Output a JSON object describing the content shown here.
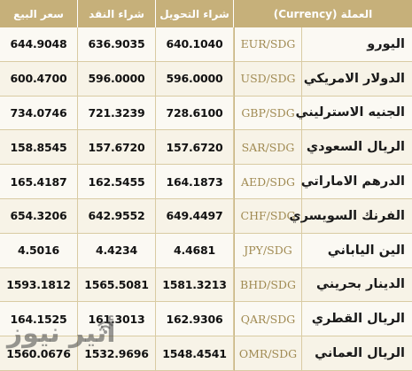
{
  "headers": {
    "sell": "سعر البيع",
    "cash_buy": "شراء النقد",
    "transfer_buy": "شراء التحويل",
    "currency": "العملة      (Currency)"
  },
  "rows": [
    {
      "name": "اليورو",
      "code": "EUR/SDG",
      "transfer_buy": "640.1040",
      "cash_buy": "636.9035",
      "sell": "644.9048"
    },
    {
      "name": "الدولار الامريكي",
      "code": "USD/SDG",
      "transfer_buy": "596.0000",
      "cash_buy": "596.0000",
      "sell": "600.4700"
    },
    {
      "name": "الجنيه الاسترليني",
      "code": "GBP/SDG",
      "transfer_buy": "728.6100",
      "cash_buy": "721.3239",
      "sell": "734.0746"
    },
    {
      "name": "الريال السعودي",
      "code": "SAR/SDG",
      "transfer_buy": "157.6720",
      "cash_buy": "157.6720",
      "sell": "158.8545"
    },
    {
      "name": "الدرهم الاماراتي",
      "code": "AED/SDG",
      "transfer_buy": "164.1873",
      "cash_buy": "162.5455",
      "sell": "165.4187"
    },
    {
      "name": "الفرنك السويسري",
      "code": "CHF/SDG",
      "transfer_buy": "649.4497",
      "cash_buy": "642.9552",
      "sell": "654.3206"
    },
    {
      "name": "الين الياباني",
      "code": "JPY/SDG",
      "transfer_buy": "4.4681",
      "cash_buy": "4.4234",
      "sell": "4.5016"
    },
    {
      "name": "الدينار بحريني",
      "code": "BHD/SDG",
      "transfer_buy": "1581.3213",
      "cash_buy": "1565.5081",
      "sell": "1593.1812"
    },
    {
      "name": "الريال القطري",
      "code": "QAR/SDG",
      "transfer_buy": "162.9306",
      "cash_buy": "161.3013",
      "sell": "164.1525"
    },
    {
      "name": "الريال العماني",
      "code": "OMR/SDG",
      "transfer_buy": "1548.4541",
      "cash_buy": "1532.9696",
      "sell": "1560.0676"
    }
  ],
  "watermark": {
    "text": "أثير نيوز",
    "icon": "wifi-signal-icon"
  },
  "colors": {
    "header": "#c6b07a",
    "code_text": "#a08a52",
    "row_background": "#fbf9f3"
  }
}
